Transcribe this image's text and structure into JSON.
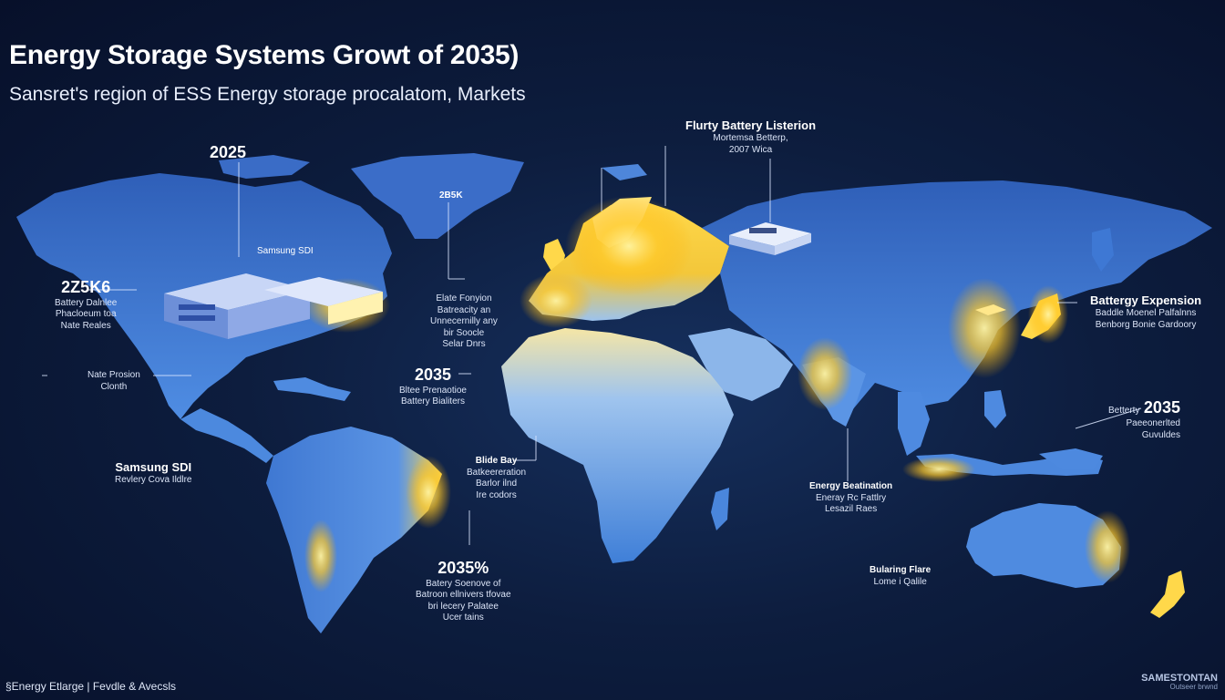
{
  "title": "Energy Storage Systems Growt of 2035)",
  "subtitle": "Sansret's region of ESS Energy storage procalatom, Markets",
  "labels": {
    "na_year": "2025",
    "na_stat_big": "2Z5K6",
    "na_stat_l1": "Battery Dalnlee",
    "na_stat_l2": "Phacloeum toa",
    "na_stat_l3": "Nate Reales",
    "na_facility": "Samsung SDI",
    "na_site_1": "Nate Prosion",
    "na_site_2": "Clonth",
    "sa_title": "Samsung SDI",
    "sa_sub": "Revlery Cova Ildlre",
    "greenland_val": "2B5K",
    "atl_1": "Elate Fonyion",
    "atl_2": "Batreacity an",
    "atl_3": "Unnecernilly any",
    "atl_4": "bir Soocle",
    "atl_5": "Selar Dnrs",
    "mid_year": "2035",
    "mid_l1": "Bltee Prenaotioe",
    "mid_l2": "Battery Bialiters",
    "wa_title": "Blide Bay",
    "wa_l1": "Batkeereration",
    "wa_l2": "Barlor ilnd",
    "wa_l3": "Ire codors",
    "south_year": "2035%",
    "south_l1": "Batery Soenove of",
    "south_l2": "Batroon ellnivers tfovae",
    "south_l3": "bri lecery Palatee",
    "south_l4": "Ucer tains",
    "eu_title": "Flurty Battery Listerion",
    "eu_l1": "Mortemsa Betterp,",
    "eu_l2": "2007 Wica",
    "asia_title": "Battergy Expension",
    "asia_l1": "Baddle Moenel Palfalnns",
    "asia_l2": "Benborg Bonie Gardoory",
    "sea_pre": "Betterty",
    "sea_year": "2035",
    "sea_l1": "Paeeonerlted",
    "sea_l2": "Guvuldes",
    "in_title": "Energy Beatination",
    "in_l1": "Eneray Rc Fattlry",
    "in_l2": "Lesazil Raes",
    "au_title": "Bularing Flare",
    "au_sub": "Lome i Qalile"
  },
  "footer": {
    "left": "§Energy Etlarge | Fevdle & Avecsls",
    "right_1": "SAMESTONTAN",
    "right_2": "Outseer brwnd"
  },
  "colors": {
    "background": "#0b1630",
    "land": "#3e78d4",
    "land_light": "#6aa6ef",
    "highlight": "#ffd23f",
    "text": "#ffffff"
  }
}
